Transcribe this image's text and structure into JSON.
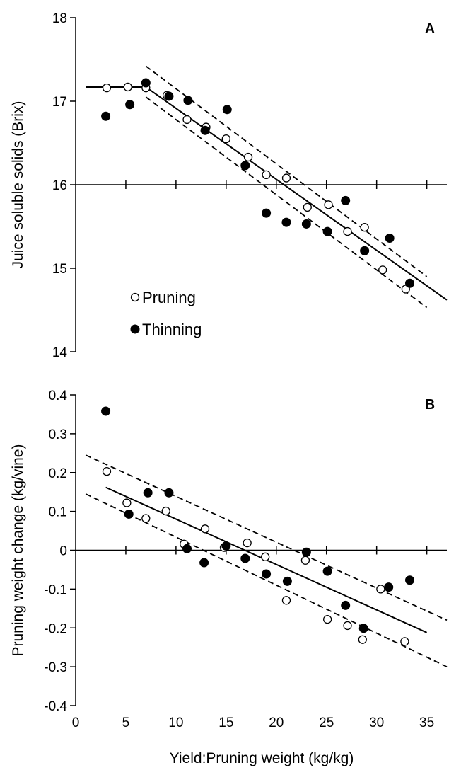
{
  "chart_data": [
    {
      "panel": "A",
      "type": "scatter",
      "ylabel": "Juice soluble solids (Brix)",
      "ylim": [
        14,
        18
      ],
      "yticks": [
        "14",
        "15",
        "16",
        "17",
        "18"
      ],
      "xlim": [
        0,
        37
      ],
      "x_axis_crosses_at": 16,
      "legend": {
        "position": "bottom-left",
        "entries": [
          "Pruning",
          "Thinning"
        ]
      },
      "series": [
        {
          "name": "Pruning",
          "marker": "open-circle",
          "points": [
            [
              3.1,
              17.16
            ],
            [
              5.2,
              17.17
            ],
            [
              7.0,
              17.16
            ],
            [
              9.1,
              17.07
            ],
            [
              11.1,
              16.78
            ],
            [
              13.0,
              16.69
            ],
            [
              15.0,
              16.55
            ],
            [
              17.2,
              16.33
            ],
            [
              19.0,
              16.12
            ],
            [
              21.0,
              16.08
            ],
            [
              23.1,
              15.73
            ],
            [
              25.2,
              15.76
            ],
            [
              27.1,
              15.44
            ],
            [
              28.8,
              15.49
            ],
            [
              30.6,
              14.98
            ],
            [
              32.9,
              14.75
            ]
          ]
        },
        {
          "name": "Thinning",
          "marker": "filled-circle",
          "points": [
            [
              3.0,
              16.82
            ],
            [
              5.4,
              16.96
            ],
            [
              7.0,
              17.22
            ],
            [
              9.3,
              17.06
            ],
            [
              11.2,
              17.01
            ],
            [
              12.9,
              16.65
            ],
            [
              15.1,
              16.9
            ],
            [
              16.9,
              16.23
            ],
            [
              19.0,
              15.66
            ],
            [
              21.0,
              15.55
            ],
            [
              23.0,
              15.53
            ],
            [
              25.1,
              15.44
            ],
            [
              26.9,
              15.81
            ],
            [
              28.8,
              15.21
            ],
            [
              31.3,
              15.36
            ],
            [
              33.3,
              14.82
            ]
          ]
        }
      ],
      "fit": {
        "type": "plateau-linear",
        "plateau": 17.17,
        "breakpoint": 7.0,
        "line": [
          [
            1.0,
            17.17
          ],
          [
            7.0,
            17.17
          ],
          [
            37.0,
            14.62
          ]
        ],
        "ci_upper": [
          [
            7.0,
            17.42
          ],
          [
            35.0,
            14.9
          ]
        ],
        "ci_lower": [
          [
            7.0,
            17.05
          ],
          [
            35.0,
            14.53
          ]
        ]
      },
      "panel_label": "A"
    },
    {
      "panel": "B",
      "type": "scatter",
      "ylabel": "Pruning weight change (kg/vine)",
      "xlabel": "Yield:Pruning weight (kg/kg)",
      "ylim": [
        -0.4,
        0.4
      ],
      "yticks": [
        "-0.4",
        "-0.3",
        "-0.2",
        "-0.1",
        "0",
        "0.1",
        "0.2",
        "0.3",
        "0.4"
      ],
      "xlim": [
        0,
        37
      ],
      "xticks": [
        "0",
        "5",
        "10",
        "15",
        "20",
        "25",
        "30",
        "35"
      ],
      "x_axis_crosses_at": 0,
      "series": [
        {
          "name": "Pruning",
          "marker": "open-circle",
          "points": [
            [
              3.1,
              0.203
            ],
            [
              5.1,
              0.122
            ],
            [
              7.0,
              0.082
            ],
            [
              9.0,
              0.101
            ],
            [
              10.8,
              0.016
            ],
            [
              12.9,
              0.055
            ],
            [
              14.8,
              0.007
            ],
            [
              17.1,
              0.019
            ],
            [
              18.9,
              -0.017
            ],
            [
              21.0,
              -0.129
            ],
            [
              22.9,
              -0.026
            ],
            [
              25.1,
              -0.178
            ],
            [
              27.1,
              -0.194
            ],
            [
              28.6,
              -0.23
            ],
            [
              30.4,
              -0.1
            ],
            [
              32.8,
              -0.235
            ]
          ]
        },
        {
          "name": "Thinning",
          "marker": "filled-circle",
          "points": [
            [
              3.0,
              0.358
            ],
            [
              5.3,
              0.093
            ],
            [
              7.2,
              0.148
            ],
            [
              9.3,
              0.148
            ],
            [
              11.1,
              0.004
            ],
            [
              12.8,
              -0.032
            ],
            [
              15.0,
              0.011
            ],
            [
              16.9,
              -0.021
            ],
            [
              19.0,
              -0.061
            ],
            [
              21.1,
              -0.08
            ],
            [
              23.0,
              -0.005
            ],
            [
              25.1,
              -0.054
            ],
            [
              26.9,
              -0.142
            ],
            [
              28.7,
              -0.201
            ],
            [
              31.2,
              -0.095
            ],
            [
              33.3,
              -0.077
            ]
          ]
        }
      ],
      "fit": {
        "type": "linear",
        "line": [
          [
            3.0,
            0.162
          ],
          [
            35.0,
            -0.212
          ]
        ],
        "ci_upper": [
          [
            1.0,
            0.245
          ],
          [
            37.0,
            -0.18
          ]
        ],
        "ci_lower": [
          [
            1.0,
            0.145
          ],
          [
            37.0,
            -0.3
          ]
        ]
      },
      "panel_label": "B"
    }
  ]
}
